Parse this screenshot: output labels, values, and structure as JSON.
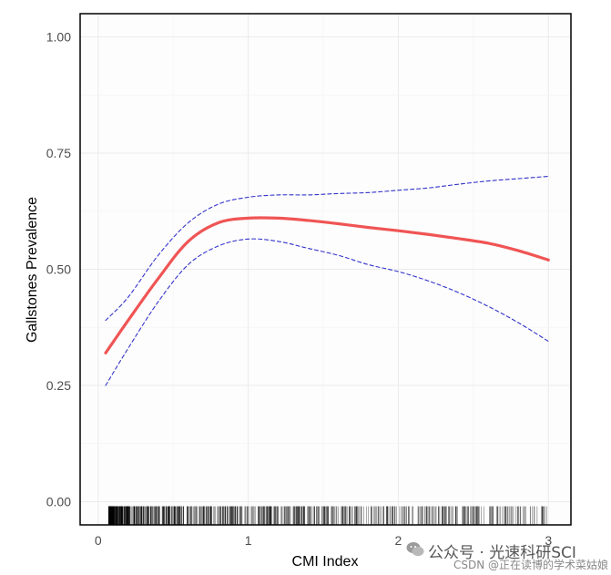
{
  "chart_data": {
    "type": "line",
    "xlabel": "CMI Index",
    "ylabel": "Gallstones Prevalence",
    "xlim": [
      -0.12,
      3.15
    ],
    "ylim": [
      -0.05,
      1.05
    ],
    "x_ticks": [
      0,
      1,
      2,
      3
    ],
    "x_tick_labels": [
      "0",
      "1",
      "2",
      "3"
    ],
    "y_ticks": [
      0,
      0.25,
      0.5,
      0.75,
      1.0
    ],
    "y_tick_labels": [
      "0.00",
      "0.25",
      "0.50",
      "0.75",
      "1.00"
    ],
    "grid": true,
    "legend": "none",
    "series": [
      {
        "role": "estimate",
        "color": "#f05454",
        "style": "solid",
        "x": [
          0.05,
          0.2,
          0.4,
          0.6,
          0.8,
          1.0,
          1.2,
          1.4,
          1.6,
          1.8,
          2.0,
          2.2,
          2.4,
          2.6,
          2.8,
          3.0
        ],
        "y": [
          0.32,
          0.39,
          0.48,
          0.56,
          0.6,
          0.61,
          0.61,
          0.605,
          0.598,
          0.59,
          0.583,
          0.575,
          0.566,
          0.556,
          0.54,
          0.52
        ]
      },
      {
        "role": "upper-ci",
        "color": "#3333cc",
        "style": "dashed",
        "x": [
          0.05,
          0.2,
          0.4,
          0.6,
          0.8,
          1.0,
          1.2,
          1.4,
          1.6,
          1.8,
          2.0,
          2.2,
          2.4,
          2.6,
          2.8,
          3.0
        ],
        "y": [
          0.39,
          0.44,
          0.53,
          0.6,
          0.64,
          0.655,
          0.66,
          0.66,
          0.663,
          0.665,
          0.67,
          0.675,
          0.683,
          0.69,
          0.695,
          0.7
        ]
      },
      {
        "role": "lower-ci",
        "color": "#3333cc",
        "style": "dashed",
        "x": [
          0.05,
          0.2,
          0.4,
          0.6,
          0.8,
          1.0,
          1.2,
          1.4,
          1.6,
          1.8,
          2.0,
          2.2,
          2.4,
          2.6,
          2.8,
          3.0
        ],
        "y": [
          0.25,
          0.33,
          0.43,
          0.51,
          0.55,
          0.565,
          0.56,
          0.545,
          0.53,
          0.51,
          0.495,
          0.475,
          0.45,
          0.42,
          0.385,
          0.345
        ]
      }
    ],
    "rug": {
      "color": "#000000",
      "y_bottom": -0.05,
      "y_top": -0.01,
      "density_note": "dense observations near 0.1–0.9, sparser toward 3.0"
    }
  },
  "watermark": {
    "line1": "公众号 · 光速科研SCI",
    "line2": "CSDN @正在读博的学术菜姑娘"
  }
}
